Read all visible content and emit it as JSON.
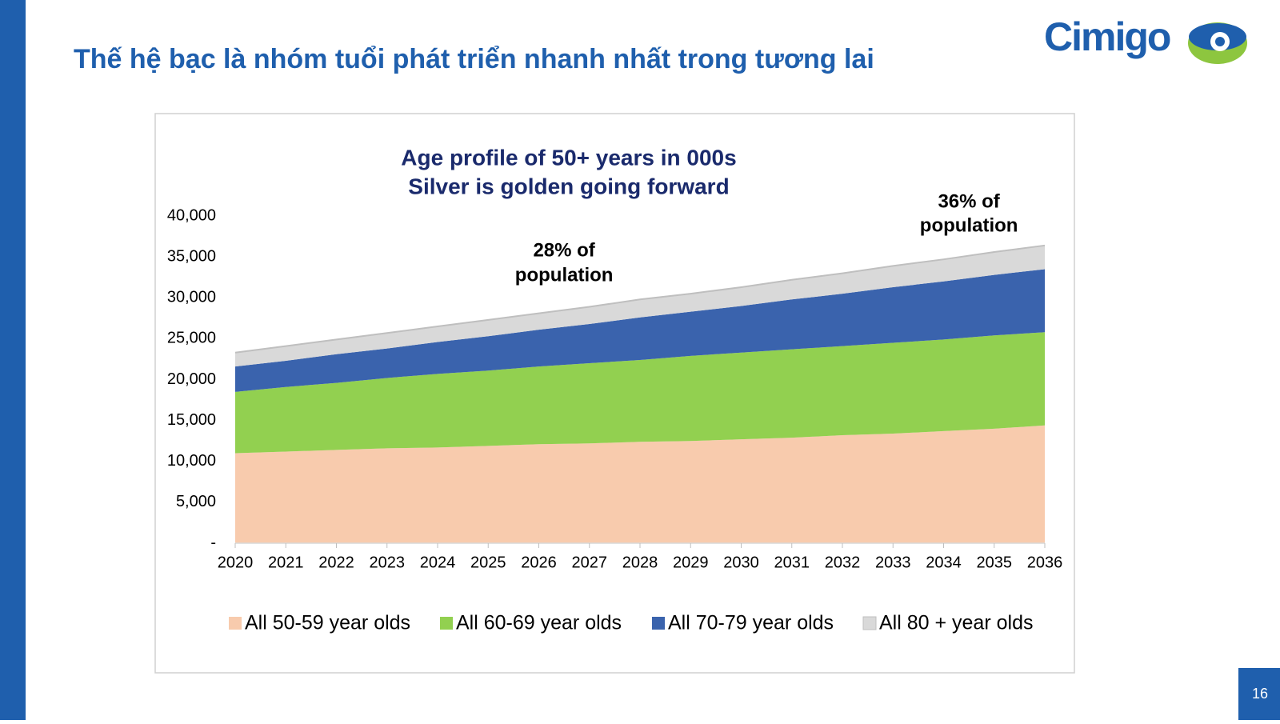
{
  "slide": {
    "title": "Thế hệ bạc là nhóm tuổi phát triển nhanh nhất trong tương lai",
    "logo": "Cimigo",
    "page_number": "16"
  },
  "chart_data": {
    "type": "stacked_area",
    "title": [
      "Age profile of 50+ years in 000s",
      "Silver is golden going forward"
    ],
    "annotations": [
      {
        "lines": [
          "28%  of",
          "population"
        ],
        "x": 2026.5
      },
      {
        "lines": [
          "36%  of",
          "population"
        ],
        "x": 2034.5
      }
    ],
    "x": [
      2020,
      2021,
      2022,
      2023,
      2024,
      2025,
      2026,
      2027,
      2028,
      2029,
      2030,
      2031,
      2032,
      2033,
      2034,
      2035,
      2036
    ],
    "xlim": [
      2020,
      2036
    ],
    "ylim": [
      0,
      40000
    ],
    "yticks": [
      {
        "value": 0,
        "label": "-"
      },
      {
        "value": 5000,
        "label": "5,000"
      },
      {
        "value": 10000,
        "label": "10,000"
      },
      {
        "value": 15000,
        "label": "15,000"
      },
      {
        "value": 20000,
        "label": "20,000"
      },
      {
        "value": 25000,
        "label": "25,000"
      },
      {
        "value": 30000,
        "label": "30,000"
      },
      {
        "value": 35000,
        "label": "35,000"
      },
      {
        "value": 40000,
        "label": "40,000"
      }
    ],
    "grid": false,
    "legend": "bottom",
    "series": [
      {
        "name": "All 50-59 year olds",
        "color": "#f8cbad",
        "values": [
          11000,
          11200,
          11400,
          11600,
          11700,
          11900,
          12100,
          12200,
          12400,
          12500,
          12700,
          12900,
          13200,
          13400,
          13700,
          14000,
          14400
        ]
      },
      {
        "name": "All 60-69 year olds",
        "color": "#92d050",
        "values": [
          7500,
          7900,
          8200,
          8600,
          9000,
          9200,
          9500,
          9800,
          10000,
          10400,
          10600,
          10800,
          10900,
          11100,
          11200,
          11400,
          11400
        ]
      },
      {
        "name": "All 70-79 year olds",
        "color": "#3a63ad",
        "values": [
          3100,
          3200,
          3500,
          3600,
          3900,
          4200,
          4500,
          4800,
          5200,
          5400,
          5700,
          6100,
          6400,
          6800,
          7100,
          7400,
          7700
        ]
      },
      {
        "name": "All 80 + year olds",
        "color": "#d9d9d9",
        "values": [
          1700,
          1800,
          1800,
          1900,
          1900,
          2000,
          2000,
          2100,
          2200,
          2200,
          2300,
          2400,
          2500,
          2600,
          2700,
          2800,
          2900
        ]
      }
    ]
  }
}
